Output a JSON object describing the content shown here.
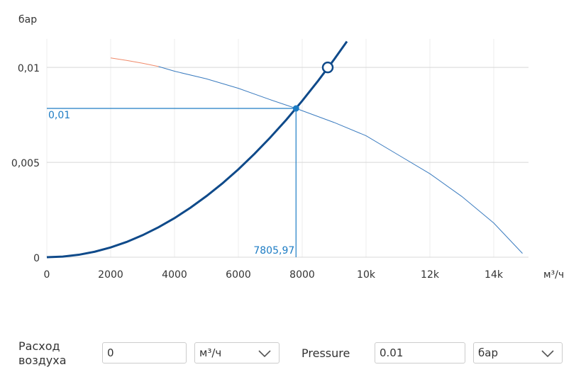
{
  "chart_data": {
    "type": "line",
    "ylabel": "бар",
    "xlabel": "м³/ч",
    "xlim": [
      0,
      15000
    ],
    "ylim": [
      0,
      0.0115
    ],
    "xticks": [
      0,
      2000,
      4000,
      6000,
      8000,
      {
        "value": 10000,
        "label": "10k"
      },
      {
        "value": 12000,
        "label": "12k"
      },
      {
        "value": 14000,
        "label": "14k"
      }
    ],
    "yticks": [
      0,
      {
        "value": 0.005,
        "label": "0,005"
      },
      {
        "value": 0.01,
        "label": "0,01"
      }
    ],
    "grid": true,
    "series": [
      {
        "color": "#0f4a8a",
        "x": [
          0,
          500,
          1000,
          1500,
          2000,
          2500,
          3000,
          3500,
          4000,
          4500,
          5000,
          5500,
          6000,
          6500,
          7000,
          7500,
          8000,
          8500,
          9000,
          9400
        ],
        "values": [
          0,
          3.22e-05,
          0.000129,
          0.00029,
          0.000515,
          0.000804,
          0.00116,
          0.00158,
          0.00206,
          0.00261,
          0.00322,
          0.00389,
          0.00463,
          0.00544,
          0.00631,
          0.00724,
          0.00824,
          0.0093,
          0.01042,
          0.01137
        ]
      },
      {
        "color": "#f08a6a",
        "x": [
          2000,
          2500,
          3000,
          3500
        ],
        "values": [
          0.0105,
          0.01037,
          0.01022,
          0.01005
        ]
      },
      {
        "color": "#3a7bbf",
        "x": [
          3500,
          4000,
          5000,
          6000,
          7000,
          7806,
          9000,
          10000,
          11000,
          12000,
          13000,
          14000,
          14900
        ],
        "values": [
          0.01005,
          0.0098,
          0.0094,
          0.0089,
          0.0083,
          0.00784,
          0.0071,
          0.0064,
          0.0054,
          0.0044,
          0.0032,
          0.0018,
          0.0002
        ]
      }
    ],
    "operating_point": {
      "x": 7805.97,
      "y": 0.00784,
      "x_label": "7805,97",
      "y_label": "0,01",
      "color": "#1d7cc4"
    },
    "target_point": {
      "x": 8800,
      "y": 0.01,
      "color": "#0f4a8a"
    }
  },
  "form": {
    "flow_label": "Расход воздуха",
    "flow_value": "0",
    "flow_unit": "м³/ч",
    "pressure_label": "Pressure",
    "pressure_value": "0.01",
    "pressure_unit": "бар"
  }
}
